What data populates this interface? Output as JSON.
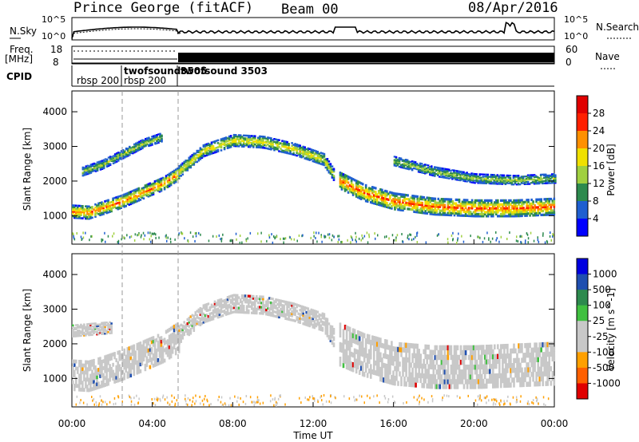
{
  "header": {
    "station": "Prince George (fitACF)",
    "beam": "Beam 00",
    "date": "08/Apr/2016"
  },
  "top_panels": {
    "nsky_label": "N.Sky",
    "nsearch_label": "N.Search",
    "noise_ticks": [
      "10^5",
      "10^0"
    ],
    "noise_ticks_right": [
      "10^5",
      "10^0"
    ],
    "freq_label_1": "Freq.",
    "freq_label_2": "[MHz]",
    "freq_ticks": [
      "18",
      "8"
    ],
    "nave_label": "Nave",
    "nave_ticks": [
      "60",
      "0"
    ],
    "cpid_label": "CPID",
    "cpid_entries": [
      {
        "label": "rbsp 200",
        "x": 0.05
      },
      {
        "label": "twofsound",
        "x": 2.55
      },
      {
        "label": "rbsp 200",
        "x": 2.55
      },
      {
        "label": "3505",
        "x": 5.3
      },
      {
        "label": "twofsound 3503",
        "x": 5.3
      }
    ]
  },
  "x_axis": {
    "label": "Time UT",
    "ticks": [
      "00:00",
      "04:00",
      "08:00",
      "12:00",
      "16:00",
      "20:00",
      "00:00"
    ],
    "tick_values": [
      0,
      4,
      8,
      12,
      16,
      20,
      24
    ],
    "range": [
      0,
      24
    ]
  },
  "chart_data": [
    {
      "type": "heatmap",
      "title": "",
      "ylabel": "Slant Range [km]",
      "yticks": [
        "1000",
        "2000",
        "3000",
        "4000"
      ],
      "ylim": [
        180,
        4600
      ],
      "xlim": [
        0,
        24
      ],
      "colorbar_label": "Power [dB]",
      "colorbar_ticks": [
        "28",
        "24",
        "20",
        "16",
        "12",
        "8",
        "4"
      ],
      "colorbar_colors": [
        "#0000ff",
        "#1f5fd0",
        "#2d8a4e",
        "#a0d040",
        "#f0e000",
        "#ff9000",
        "#ff2000",
        "#e00000"
      ],
      "bands": [
        {
          "x": [
            0.0,
            0.8,
            1.5,
            2.5,
            3.5,
            4.5,
            5.3
          ],
          "y": [
            1150,
            1120,
            1250,
            1450,
            1700,
            1950,
            2250
          ],
          "width": 220,
          "power": 24
        },
        {
          "x": [
            5.3,
            6.5,
            8.0,
            9.5,
            11.0,
            12.5,
            13.0
          ],
          "y": [
            2300,
            2900,
            3200,
            3150,
            2950,
            2650,
            2200
          ],
          "width": 200,
          "power": 18
        },
        {
          "x": [
            13.3,
            14.5,
            16.0,
            18.0,
            20.0,
            22.0,
            24.0
          ],
          "y": [
            2050,
            1700,
            1450,
            1300,
            1250,
            1250,
            1300
          ],
          "width": 280,
          "power": 26
        },
        {
          "x": [
            0.5,
            1.5,
            2.5,
            3.5,
            4.5
          ],
          "y": [
            2300,
            2500,
            2800,
            3100,
            3300
          ],
          "width": 150,
          "power": 14
        },
        {
          "x": [
            16.0,
            18.0,
            20.0,
            22.0,
            24.0
          ],
          "y": [
            2600,
            2300,
            2100,
            2050,
            2100
          ],
          "width": 160,
          "power": 14
        }
      ]
    },
    {
      "type": "heatmap",
      "title": "",
      "ylabel": "Slant Range [km]",
      "yticks": [
        "1000",
        "2000",
        "3000",
        "4000"
      ],
      "ylim": [
        180,
        4600
      ],
      "xlim": [
        0,
        24
      ],
      "colorbar_label": "Velocity [m s^-1]",
      "colorbar_ticks": [
        "1000",
        "500",
        "100",
        "25",
        "-25",
        "-100",
        "-500",
        "-1000"
      ],
      "colorbar_colors": [
        "#e00000",
        "#ff6000",
        "#ffa000",
        "#c8c8c8",
        "#c8c8c8",
        "#40c040",
        "#2d8a4e",
        "#1f4fb0",
        "#0000e0"
      ],
      "bands": [
        {
          "x": [
            0.0,
            0.8,
            1.5,
            2.5,
            3.5,
            4.5,
            5.3
          ],
          "y": [
            1150,
            1120,
            1250,
            1450,
            1700,
            1950,
            2250
          ],
          "width": 500
        },
        {
          "x": [
            5.3,
            6.5,
            8.0,
            9.5,
            11.0,
            12.5,
            13.0
          ],
          "y": [
            2300,
            2900,
            3200,
            3150,
            2950,
            2650,
            2200
          ],
          "width": 300
        },
        {
          "x": [
            13.3,
            14.5,
            16.0,
            18.0,
            20.0,
            22.0,
            24.0
          ],
          "y": [
            2050,
            1750,
            1500,
            1400,
            1400,
            1450,
            1500
          ],
          "width": 700
        },
        {
          "x": [
            0.0,
            1.0,
            2.0
          ],
          "y": [
            2400,
            2450,
            2500
          ],
          "width": 200
        }
      ]
    }
  ]
}
